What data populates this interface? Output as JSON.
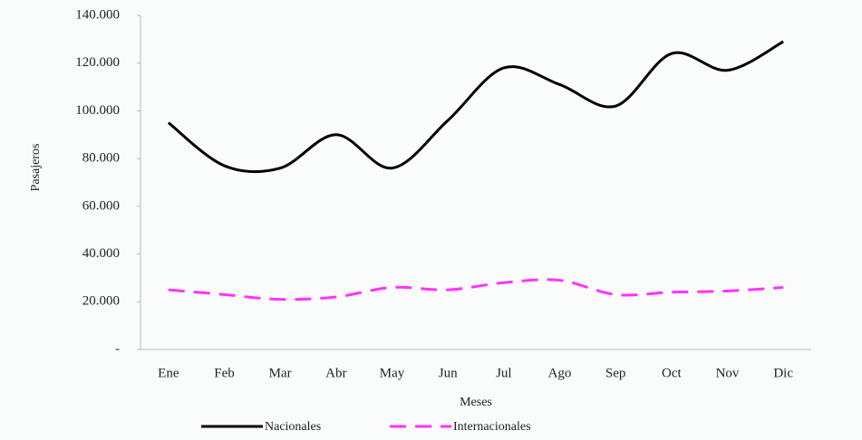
{
  "chart_data": {
    "type": "line",
    "categories": [
      "Ene",
      "Feb",
      "Mar",
      "Abr",
      "May",
      "Jun",
      "Jul",
      "Ago",
      "Sep",
      "Oct",
      "Nov",
      "Dic"
    ],
    "series": [
      {
        "name": "Nacionales",
        "color": "#000000",
        "values": [
          95000,
          77000,
          76000,
          90000,
          76000,
          96000,
          118000,
          111000,
          102000,
          124000,
          117000,
          129000
        ]
      },
      {
        "name": "Internacionales",
        "color": "#ff33ff",
        "dashed": true,
        "values": [
          25000,
          23000,
          21000,
          22000,
          26000,
          25000,
          28000,
          29000,
          23000,
          24000,
          24500,
          26000
        ]
      }
    ],
    "x_label": "Meses",
    "y_label": "Pasajeros",
    "ylim": [
      0,
      140000
    ],
    "yticks": [
      {
        "value": 0,
        "label": "-"
      },
      {
        "value": 20000,
        "label": "20.000"
      },
      {
        "value": 40000,
        "label": "40.000"
      },
      {
        "value": 60000,
        "label": "60.000"
      },
      {
        "value": 80000,
        "label": "80.000"
      },
      {
        "value": 100000,
        "label": "100.000"
      },
      {
        "value": 120000,
        "label": "120.000"
      },
      {
        "value": 140000,
        "label": "140.000"
      }
    ],
    "legend": "bottom"
  }
}
